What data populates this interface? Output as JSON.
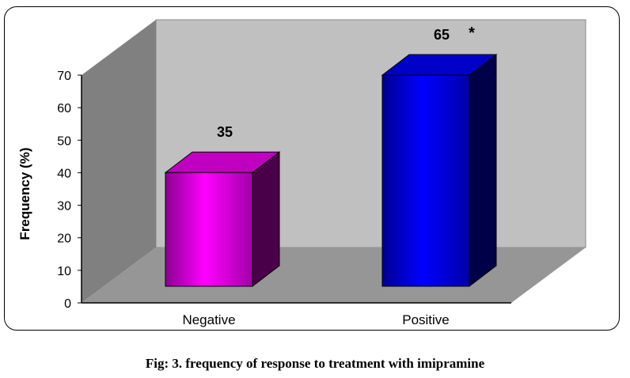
{
  "chart_data": {
    "type": "bar",
    "title": "",
    "categories": [
      "Negative",
      "Positive"
    ],
    "values": [
      35,
      65
    ],
    "data_labels": [
      "35",
      "65"
    ],
    "annotation": "*",
    "xlabel": "",
    "ylabel": "Frequency (%)",
    "ylim": [
      0,
      70
    ],
    "yticks": [
      0,
      10,
      20,
      30,
      40,
      50,
      60,
      70
    ],
    "colors": [
      "#ff00ff",
      "#0000ff"
    ],
    "grid": false,
    "style": "3d"
  },
  "caption": "Fig: 3. frequency of response to treatment with imipramine"
}
